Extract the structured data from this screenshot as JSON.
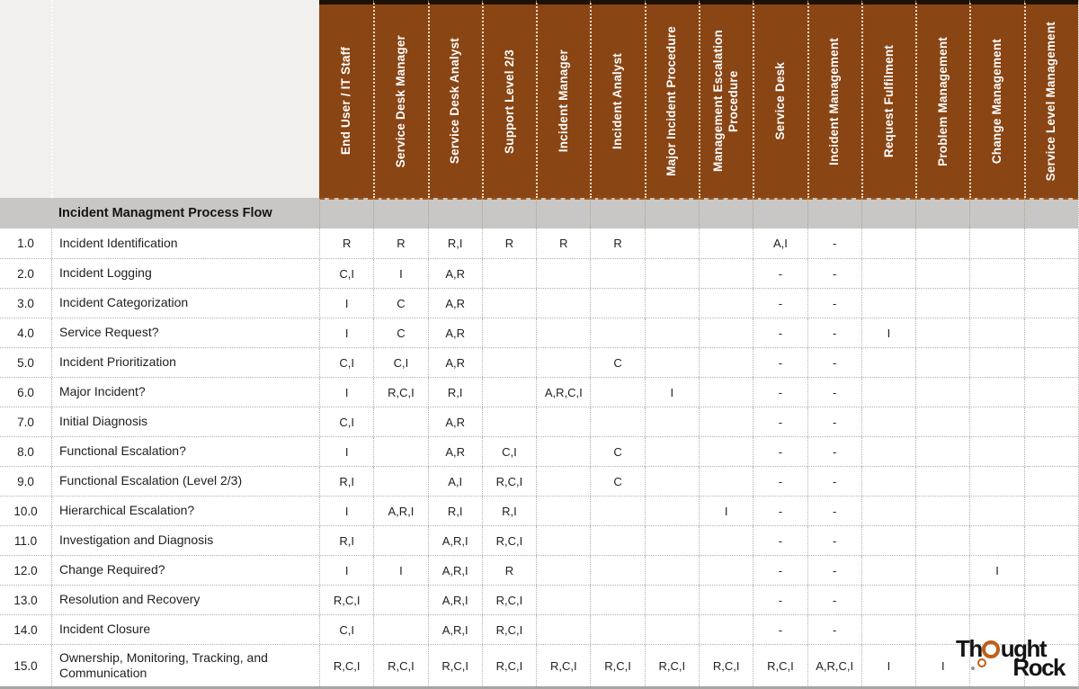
{
  "table": {
    "title": "Incident Managment Process Flow",
    "columns": [
      "End User / IT Staff",
      "Service Desk Manager",
      "Service Desk Analyst",
      "Support Level 2/3",
      "Incident Manager",
      "Incident Analyst",
      "Major Incident Procedure",
      "Management Escalation Procedure",
      "Service Desk",
      "Incident Management",
      "Request Fulfilment",
      "Problem Management",
      "Change Management",
      "Service Level Management"
    ],
    "rows": [
      {
        "num": "1.0",
        "task": "Incident Identification",
        "cells": [
          "R",
          "R",
          "R,I",
          "R",
          "R",
          "R",
          "",
          "",
          "A,I",
          "-",
          "",
          "",
          "",
          ""
        ]
      },
      {
        "num": "2.0",
        "task": "Incident Logging",
        "cells": [
          "C,I",
          "I",
          "A,R",
          "",
          "",
          "",
          "",
          "",
          "-",
          "-",
          "",
          "",
          "",
          ""
        ]
      },
      {
        "num": "3.0",
        "task": "Incident Categorization",
        "cells": [
          "I",
          "C",
          "A,R",
          "",
          "",
          "",
          "",
          "",
          "-",
          "-",
          "",
          "",
          "",
          ""
        ]
      },
      {
        "num": "4.0",
        "task": "Service Request?",
        "cells": [
          "I",
          "C",
          "A,R",
          "",
          "",
          "",
          "",
          "",
          "-",
          "-",
          "I",
          "",
          "",
          ""
        ]
      },
      {
        "num": "5.0",
        "task": "Incident Prioritization",
        "cells": [
          "C,I",
          "C,I",
          "A,R",
          "",
          "",
          "C",
          "",
          "",
          "-",
          "-",
          "",
          "",
          "",
          ""
        ]
      },
      {
        "num": "6.0",
        "task": "Major Incident?",
        "cells": [
          "I",
          "R,C,I",
          "R,I",
          "",
          "A,R,C,I",
          "",
          "I",
          "",
          "-",
          "-",
          "",
          "",
          "",
          ""
        ]
      },
      {
        "num": "7.0",
        "task": "Initial Diagnosis",
        "cells": [
          "C,I",
          "",
          "A,R",
          "",
          "",
          "",
          "",
          "",
          "-",
          "-",
          "",
          "",
          "",
          ""
        ]
      },
      {
        "num": "8.0",
        "task": "Functional Escalation?",
        "cells": [
          "I",
          "",
          "A,R",
          "C,I",
          "",
          "C",
          "",
          "",
          "-",
          "-",
          "",
          "",
          "",
          ""
        ]
      },
      {
        "num": "9.0",
        "task": "Functional Escalation (Level 2/3)",
        "cells": [
          "R,I",
          "",
          "A,I",
          "R,C,I",
          "",
          "C",
          "",
          "",
          "-",
          "-",
          "",
          "",
          "",
          ""
        ]
      },
      {
        "num": "10.0",
        "task": "Hierarchical Escalation?",
        "cells": [
          "I",
          "A,R,I",
          "R,I",
          "R,I",
          "",
          "",
          "",
          "I",
          "-",
          "-",
          "",
          "",
          "",
          ""
        ]
      },
      {
        "num": "11.0",
        "task": "Investigation and Diagnosis",
        "cells": [
          "R,I",
          "",
          "A,R,I",
          "R,C,I",
          "",
          "",
          "",
          "",
          "-",
          "-",
          "",
          "",
          "",
          ""
        ]
      },
      {
        "num": "12.0",
        "task": "Change Required?",
        "cells": [
          "I",
          "I",
          "A,R,I",
          "R",
          "",
          "",
          "",
          "",
          "-",
          "-",
          "",
          "",
          "I",
          ""
        ]
      },
      {
        "num": "13.0",
        "task": "Resolution and Recovery",
        "cells": [
          "R,C,I",
          "",
          "A,R,I",
          "R,C,I",
          "",
          "",
          "",
          "",
          "-",
          "-",
          "",
          "",
          "",
          ""
        ]
      },
      {
        "num": "14.0",
        "task": "Incident Closure",
        "cells": [
          "C,I",
          "",
          "A,R,I",
          "R,C,I",
          "",
          "",
          "",
          "",
          "-",
          "-",
          "",
          "",
          "",
          ""
        ]
      },
      {
        "num": "15.0",
        "task": "Ownership, Monitoring, Tracking, and Communication",
        "cells": [
          "R,C,I",
          "R,C,I",
          "R,C,I",
          "R,C,I",
          "R,C,I",
          "R,C,I",
          "R,C,I",
          "R,C,I",
          "R,C,I",
          "A,R,C,I",
          "I",
          "I",
          "",
          ""
        ]
      }
    ]
  },
  "logo": {
    "name": "Thought Rock",
    "line1_prefix": "Th",
    "line1_suffix": "ught",
    "line2": "Rock"
  },
  "colors": {
    "header_bg": "#8a4514",
    "header_text": "#ffffff",
    "band_bg": "#c8c7c5",
    "logo_orange": "#bf5e17"
  }
}
